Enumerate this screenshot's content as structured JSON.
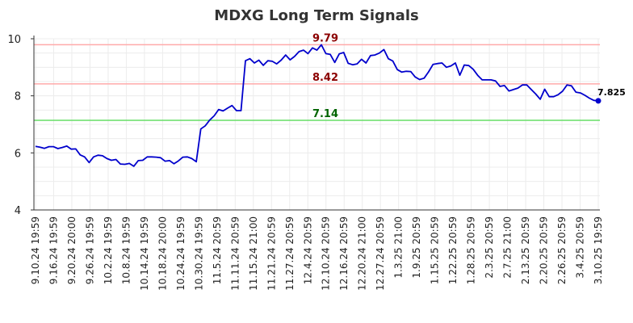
{
  "chart_data": {
    "type": "line",
    "title": "MDXG Long Term Signals",
    "xlabel": "",
    "ylabel": "",
    "ylim": [
      4,
      10
    ],
    "yticks": [
      4,
      6,
      8,
      10
    ],
    "grid": true,
    "x_tick_labels": [
      "9.10.24 19:59",
      "9.16.24 19:59",
      "9.20.24 20:00",
      "9.26.24 19:59",
      "10.2.24 19:59",
      "10.8.24 19:59",
      "10.14.24 19:59",
      "10.18.24 20:00",
      "10.24.24 19:59",
      "10.30.24 19:59",
      "11.5.24 20:59",
      "11.11.24 20:59",
      "11.15.24 21:00",
      "11.21.24 20:59",
      "11.27.24 20:59",
      "12.4.24 20:59",
      "12.10.24 20:59",
      "12.16.24 20:59",
      "12.20.24 21:00",
      "12.27.24 20:59",
      "1.3.25 21:00",
      "1.9.25 20:59",
      "1.15.25 20:59",
      "1.22.25 20:59",
      "1.28.25 20:59",
      "2.3.25 20:59",
      "2.7.25 21:00",
      "2.13.25 20:59",
      "2.20.25 20:59",
      "2.26.25 20:59",
      "3.4.25 20:59",
      "3.10.25 19:59"
    ],
    "reference_lines": [
      {
        "value": 9.79,
        "label": "9.79",
        "line_color": "#ffaaaa",
        "label_color": "#8b0000"
      },
      {
        "value": 8.42,
        "label": "8.42",
        "line_color": "#ffaaaa",
        "label_color": "#8b0000"
      },
      {
        "value": 7.14,
        "label": "7.14",
        "line_color": "#66dd66",
        "label_color": "#006400"
      }
    ],
    "series": [
      {
        "color": "#0000cc",
        "values": [
          6.23,
          6.2,
          6.16,
          6.22,
          6.22,
          6.15,
          6.19,
          6.24,
          6.13,
          6.14,
          5.93,
          5.86,
          5.66,
          5.86,
          5.92,
          5.9,
          5.8,
          5.74,
          5.77,
          5.61,
          5.6,
          5.63,
          5.53,
          5.73,
          5.74,
          5.86,
          5.86,
          5.85,
          5.83,
          5.71,
          5.73,
          5.62,
          5.72,
          5.85,
          5.86,
          5.8,
          5.69,
          6.84,
          6.95,
          7.15,
          7.3,
          7.52,
          7.47,
          7.57,
          7.66,
          7.48,
          7.48,
          9.23,
          9.3,
          9.15,
          9.25,
          9.07,
          9.23,
          9.21,
          9.12,
          9.25,
          9.43,
          9.26,
          9.38,
          9.55,
          9.6,
          9.48,
          9.68,
          9.6,
          9.79,
          9.48,
          9.45,
          9.17,
          9.47,
          9.52,
          9.14,
          9.09,
          9.12,
          9.28,
          9.15,
          9.41,
          9.43,
          9.5,
          9.62,
          9.3,
          9.22,
          8.92,
          8.83,
          8.86,
          8.85,
          8.66,
          8.57,
          8.62,
          8.84,
          9.1,
          9.13,
          9.15,
          9.0,
          9.05,
          9.15,
          8.72,
          9.08,
          9.06,
          8.93,
          8.72,
          8.56,
          8.56,
          8.56,
          8.52,
          8.33,
          8.36,
          8.17,
          8.22,
          8.27,
          8.38,
          8.38,
          8.22,
          8.06,
          7.88,
          8.23,
          7.97,
          7.97,
          8.04,
          8.16,
          8.38,
          8.35,
          8.13,
          8.1,
          8.02,
          7.92,
          7.84,
          7.825
        ],
        "last_label": "7.825"
      }
    ]
  }
}
